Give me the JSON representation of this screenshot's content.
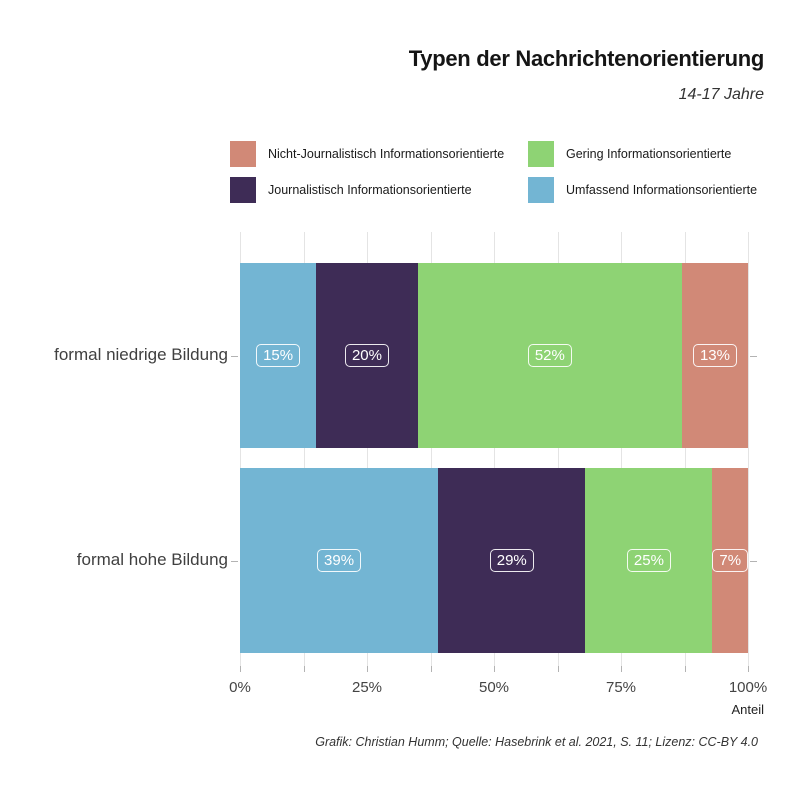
{
  "header": {
    "title": "Typen der Nachrichtenorientierung",
    "subtitle": "14-17 Jahre"
  },
  "legend": {
    "items": [
      {
        "label": "Nicht-Journalistisch Informationsorientierte",
        "color": "#d18977"
      },
      {
        "label": "Journalistisch Informationsorientierte",
        "color": "#3e2c56"
      },
      {
        "label": "Gering Informationsorientierte",
        "color": "#8ed374"
      },
      {
        "label": "Umfassend Informationsorientierte",
        "color": "#73b5d3"
      }
    ]
  },
  "chart_data": {
    "type": "bar",
    "orientation": "horizontal",
    "stacked": true,
    "title": "Typen der Nachrichtenorientierung",
    "subtitle": "14-17 Jahre",
    "categories": [
      "formal niedrige Bildung",
      "formal hohe Bildung"
    ],
    "series": [
      {
        "name": "Umfassend Informationsorientierte",
        "color": "#73b5d3",
        "values": [
          15,
          39
        ]
      },
      {
        "name": "Journalistisch Informationsorientierte",
        "color": "#3e2c56",
        "values": [
          20,
          29
        ]
      },
      {
        "name": "Gering Informationsorientierte",
        "color": "#8ed374",
        "values": [
          52,
          25
        ]
      },
      {
        "name": "Nicht-Journalistisch Informationsorientierte",
        "color": "#d18977",
        "values": [
          13,
          7
        ]
      }
    ],
    "value_label_format": "{v}%",
    "xlabel": "Anteil",
    "xlim": [
      0,
      100
    ],
    "x_major_ticks": [
      0,
      25,
      50,
      75,
      100
    ],
    "x_tick_labels": [
      "0%",
      "25%",
      "50%",
      "75%",
      "100%"
    ],
    "x_minor_step": 12.5,
    "grid": "vertical",
    "legend_position": "top"
  },
  "footer": {
    "caption": "Grafik: Christian Humm; Quelle: Hasebrink et al. 2021, S. 11; Lizenz: CC-BY 4.0"
  },
  "colors": {
    "gridline": "#e4e4e4",
    "tick": "#b3b3b3",
    "axis_text": "#444444",
    "category_text": "#404040",
    "value_label_text": "#ffffff"
  }
}
